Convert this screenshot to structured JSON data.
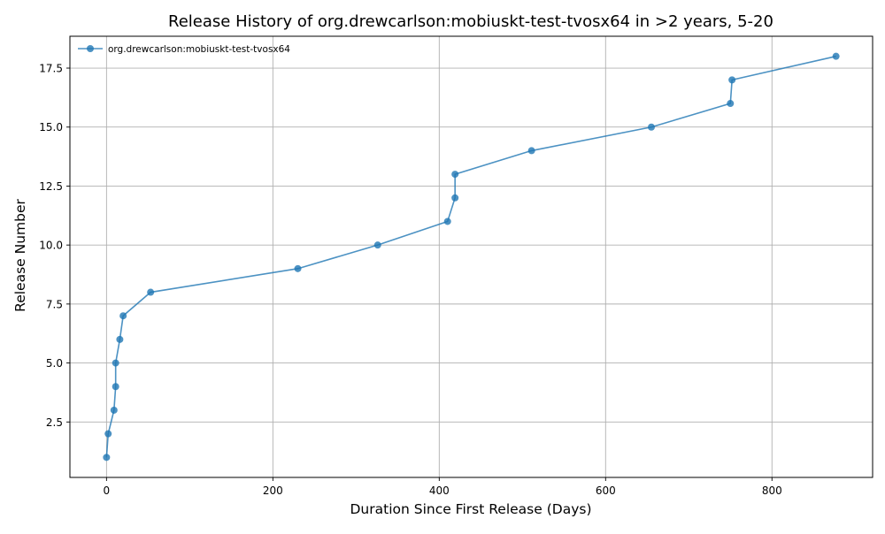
{
  "chart_data": {
    "type": "line",
    "title": "Release History of org.drewcarlson:mobiuskt-test-tvosx64 in >2 years, 5-20",
    "xlabel": "Duration Since First Release (Days)",
    "ylabel": "Release Number",
    "xlim": [
      -44,
      921
    ],
    "ylim": [
      0.15,
      18.85
    ],
    "xticks": [
      0,
      200,
      400,
      600,
      800
    ],
    "yticks": [
      2.5,
      5.0,
      7.5,
      10.0,
      12.5,
      15.0,
      17.5
    ],
    "grid": true,
    "legend_position": "top-left",
    "series": [
      {
        "name": "org.drewcarlson:mobiuskt-test-tvosx64",
        "color": "#1f77b4",
        "x": [
          0,
          2,
          9,
          11,
          11,
          16,
          20,
          53,
          230,
          326,
          410,
          419,
          419,
          511,
          655,
          750,
          752,
          877
        ],
        "y": [
          1,
          2,
          3,
          4,
          5,
          6,
          7,
          8,
          9,
          10,
          11,
          12,
          13,
          14,
          15,
          16,
          17,
          18
        ]
      }
    ]
  }
}
